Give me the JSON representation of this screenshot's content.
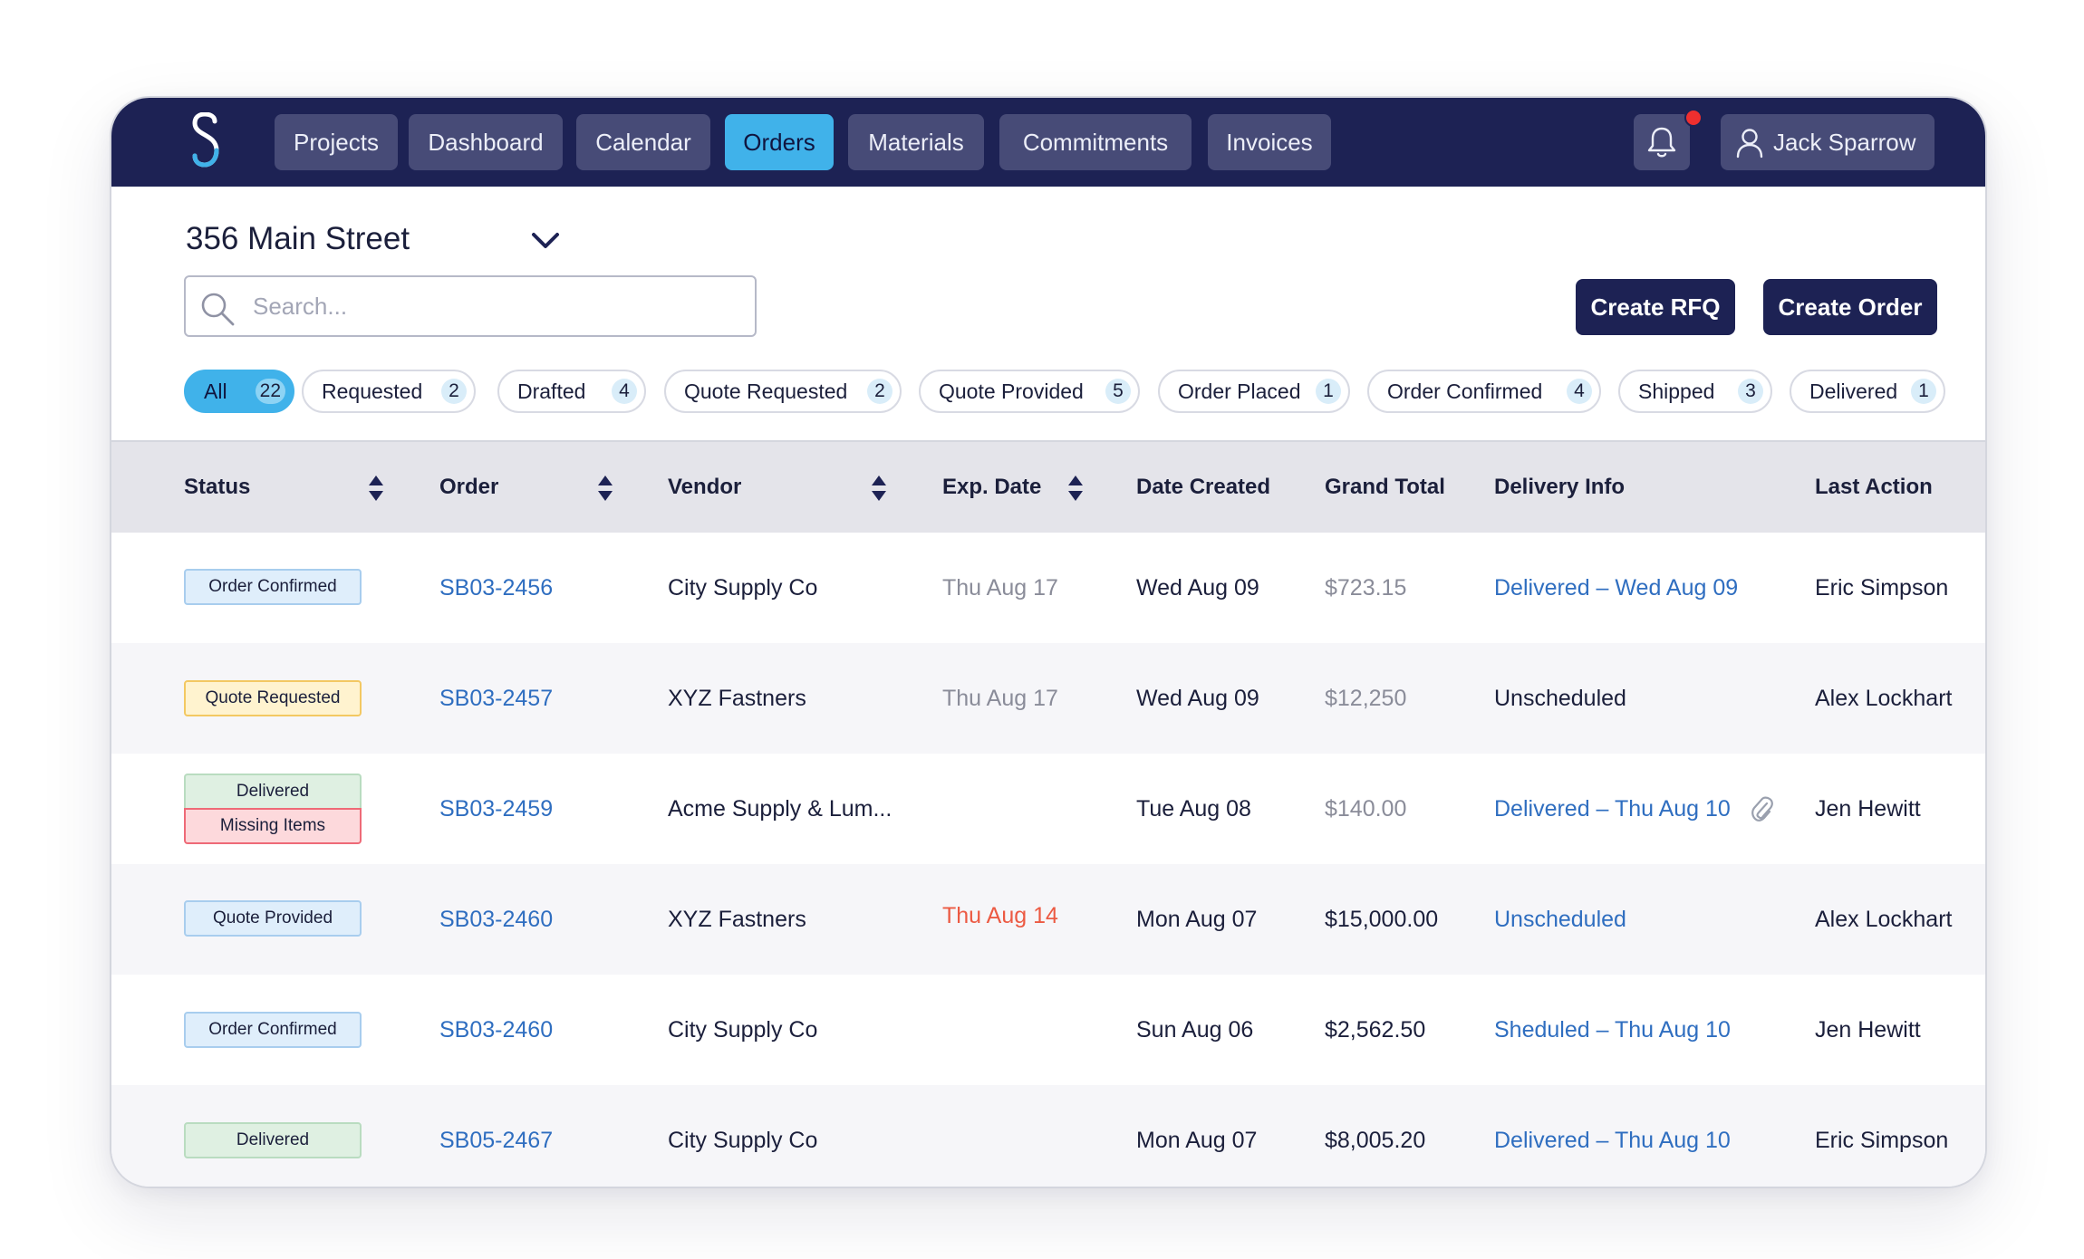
{
  "nav": {
    "tabs": [
      {
        "label": "Projects",
        "active": false
      },
      {
        "label": "Dashboard",
        "active": false
      },
      {
        "label": "Calendar",
        "active": false
      },
      {
        "label": "Orders",
        "active": true
      },
      {
        "label": "Materials",
        "active": false
      },
      {
        "label": "Commitments",
        "active": false
      },
      {
        "label": "Invoices",
        "active": false
      }
    ],
    "user_name": "Jack Sparrow",
    "has_notification": true
  },
  "project": {
    "title": "356 Main Street"
  },
  "search": {
    "placeholder": "Search...",
    "value": ""
  },
  "actions": {
    "create_rfq": "Create RFQ",
    "create_order": "Create Order"
  },
  "filters": [
    {
      "label": "All",
      "count": "22",
      "active": true
    },
    {
      "label": "Requested",
      "count": "2"
    },
    {
      "label": "Drafted",
      "count": "4"
    },
    {
      "label": "Quote Requested",
      "count": "2"
    },
    {
      "label": "Quote Provided",
      "count": "5"
    },
    {
      "label": "Order Placed",
      "count": "1"
    },
    {
      "label": "Order Confirmed",
      "count": "4"
    },
    {
      "label": "Shipped",
      "count": "3"
    },
    {
      "label": "Delivered",
      "count": "1"
    }
  ],
  "table": {
    "headers": {
      "status": "Status",
      "order": "Order",
      "vendor": "Vendor",
      "exp_date": "Exp. Date",
      "date_created": "Date Created",
      "grand_total": "Grand Total",
      "delivery_info": "Delivery Info",
      "last_action": "Last Action"
    },
    "rows": [
      {
        "status": [
          "Order Confirmed"
        ],
        "order": "SB03-2456",
        "vendor": "City Supply Co",
        "exp_date": "Thu Aug 17",
        "date_created": "Wed Aug 09",
        "grand_total": "$723.15",
        "delivery_info": "Delivered – Wed Aug 09",
        "last_action": "Eric Simpson"
      },
      {
        "status": [
          "Quote Requested"
        ],
        "order": "SB03-2457",
        "vendor": "XYZ Fastners",
        "exp_date": "Thu Aug 17",
        "date_created": "Wed Aug 09",
        "grand_total": "$12,250",
        "delivery_info": "Unscheduled",
        "last_action": "Alex Lockhart"
      },
      {
        "status": [
          "Delivered",
          "Missing Items"
        ],
        "order": "SB03-2459",
        "vendor": "Acme Supply & Lum...",
        "exp_date": "",
        "date_created": "Tue Aug 08",
        "grand_total": "$140.00",
        "delivery_info": "Delivered – Thu Aug 10",
        "has_attachment": true,
        "last_action": "Jen Hewitt"
      },
      {
        "status": [
          "Quote Provided"
        ],
        "order": "SB03-2460",
        "vendor": "XYZ Fastners",
        "exp_date": "Thu Aug 14",
        "date_created": "Mon Aug 07",
        "grand_total": "$15,000.00",
        "delivery_info": "Unscheduled",
        "last_action": "Alex Lockhart"
      },
      {
        "status": [
          "Order Confirmed"
        ],
        "order": "SB03-2460",
        "vendor": "City Supply Co",
        "exp_date": "",
        "date_created": "Sun Aug 06",
        "grand_total": "$2,562.50",
        "delivery_info": "Sheduled – Thu Aug 10",
        "last_action": "Jen Hewitt"
      },
      {
        "status": [
          "Delivered"
        ],
        "order": "SB05-2467",
        "vendor": "City Supply Co",
        "exp_date": "",
        "date_created": "Mon Aug 07",
        "grand_total": "$8,005.20",
        "delivery_info": "Delivered – Thu Aug 10",
        "last_action": "Eric Simpson"
      }
    ]
  },
  "colors": {
    "navy": "#1d2254",
    "accent": "#40b2ea",
    "link": "#2f6ec0",
    "overdue": "#ec5a43",
    "notification": "#ee2f2f"
  },
  "icons": {
    "logo": "logo-icon",
    "notification": "bell-icon",
    "user": "user-icon",
    "dropdown": "chevron-down-icon",
    "search": "search-icon",
    "sort": "sort-icon",
    "attachment": "paperclip-icon"
  }
}
